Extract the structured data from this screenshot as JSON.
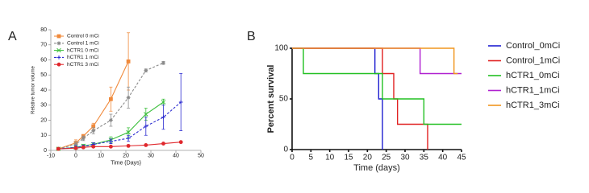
{
  "chart_data": [
    {
      "type": "line",
      "label": "A",
      "xlabel": "Time (Days)",
      "ylabel": "Relative tumor volume",
      "xlim": [
        -10,
        50
      ],
      "xticks": [
        -10,
        0,
        10,
        20,
        30,
        40,
        50
      ],
      "ylim": [
        0,
        80
      ],
      "yticks": [
        0,
        10,
        20,
        30,
        40,
        50,
        60,
        70,
        80
      ],
      "legend": "upper left",
      "series": [
        {
          "name": "Control 0 mCi",
          "color": "#f08a3c",
          "marker": "square",
          "dash": false,
          "x": [
            -7,
            0,
            3,
            7,
            14,
            21
          ],
          "values": [
            1,
            5,
            9.5,
            16,
            34,
            59
          ],
          "errors": [
            0.5,
            2,
            1,
            2,
            8,
            19
          ]
        },
        {
          "name": "Control 1 mCi",
          "color": "#8a8a8a",
          "marker": "star",
          "dash": true,
          "x": [
            -7,
            0,
            3,
            7,
            14,
            21,
            28,
            35
          ],
          "values": [
            1,
            4,
            8,
            13,
            20,
            35,
            53,
            58
          ],
          "errors": [
            0.5,
            1.5,
            1.5,
            2,
            4,
            7,
            1,
            1
          ]
        },
        {
          "name": "hCTR1 0 mCi",
          "color": "#3cbf3c",
          "marker": "x",
          "dash": false,
          "x": [
            -7,
            0,
            3,
            7,
            14,
            21,
            28,
            35
          ],
          "values": [
            1,
            2,
            3,
            4,
            7,
            12,
            24,
            32
          ],
          "errors": [
            0.5,
            1,
            1,
            1,
            2,
            3,
            4,
            2
          ]
        },
        {
          "name": "hCTR1 1 mCi",
          "color": "#2b2bd0",
          "marker": "plus",
          "dash": true,
          "x": [
            -7,
            0,
            3,
            7,
            14,
            21,
            28,
            35,
            42
          ],
          "values": [
            1,
            2,
            2.5,
            4,
            6,
            8,
            16,
            22,
            32
          ],
          "errors": [
            0.5,
            1,
            1,
            1,
            1.5,
            2,
            6,
            8,
            19
          ]
        },
        {
          "name": "hCTR1 3 mCi",
          "color": "#e0282d",
          "marker": "circle",
          "dash": false,
          "x": [
            -7,
            0,
            3,
            7,
            14,
            21,
            28,
            35,
            42
          ],
          "values": [
            1,
            1.5,
            2,
            2.5,
            2.5,
            3,
            3.5,
            4.5,
            5.5
          ],
          "errors": [
            0.3,
            0.5,
            0.5,
            0.5,
            0.5,
            0.5,
            0.5,
            0.5,
            0.5
          ]
        }
      ]
    },
    {
      "type": "survival",
      "label": "B",
      "xlabel": "Time (days)",
      "ylabel": "Percent survival",
      "xlim": [
        0,
        45
      ],
      "xticks": [
        0,
        5,
        10,
        15,
        20,
        25,
        30,
        35,
        40,
        45
      ],
      "ylim": [
        0,
        100
      ],
      "yticks": [
        0,
        50,
        100
      ],
      "legend": "right",
      "series": [
        {
          "name": "Control_0mCi",
          "color": "#1f1fd0",
          "x": [
            0,
            22,
            23,
            24
          ],
          "values": [
            100,
            75,
            50,
            0
          ]
        },
        {
          "name": "Control_1mCi",
          "color": "#e02020",
          "x": [
            0,
            24,
            27,
            28,
            36
          ],
          "values": [
            100,
            75,
            50,
            25,
            0
          ]
        },
        {
          "name": "hCTR1_0mCi",
          "color": "#22c022",
          "x": [
            0,
            3,
            24,
            35,
            45
          ],
          "values": [
            100,
            75,
            50,
            25,
            25
          ]
        },
        {
          "name": "hCTR1_1mCi",
          "color": "#b020d0",
          "x": [
            0,
            34,
            45
          ],
          "values": [
            100,
            75,
            75
          ]
        },
        {
          "name": "hCTR1_3mCi",
          "color": "#f0961e",
          "x": [
            0,
            43,
            44
          ],
          "values": [
            100,
            75,
            75
          ]
        }
      ]
    }
  ]
}
